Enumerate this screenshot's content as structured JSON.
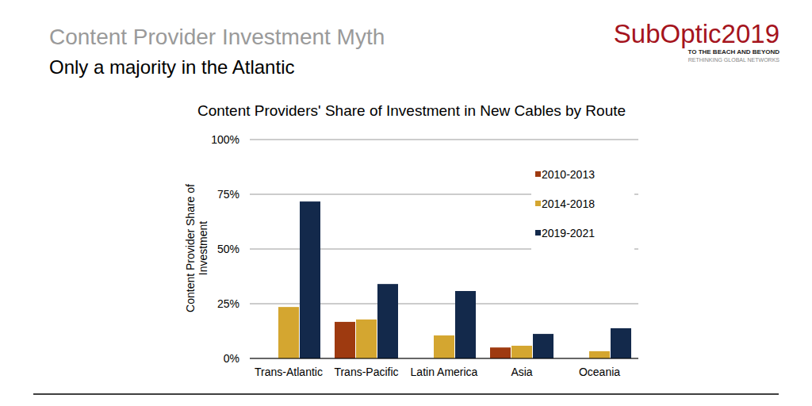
{
  "slide": {
    "heading": "Content Provider Investment Myth",
    "subheading": "Only a majority in the Atlantic",
    "logo": {
      "name": "SubOptic2019",
      "tagline": "TO THE BEACH AND BEYOND",
      "motto": "RETHINKING GLOBAL NETWORKS"
    }
  },
  "chart_data": {
    "type": "bar",
    "title": "Content Providers' Share of Investment in New Cables by Route",
    "y_label": "Content Provider Share of Investment",
    "categories": [
      "Trans-Atlantic",
      "Trans-Pacific",
      "Latin America",
      "Asia",
      "Oceania"
    ],
    "series": [
      {
        "name": "2010-2013",
        "color": "#9e3a10",
        "values": [
          null,
          16.7,
          null,
          5,
          null
        ]
      },
      {
        "name": "2014-2018",
        "color": "#d4a630",
        "values": [
          23.5,
          17.8,
          10.5,
          5.8,
          3.3
        ]
      },
      {
        "name": "2019-2021",
        "color": "#13294b",
        "values": [
          71.7,
          34,
          30.8,
          11.2,
          13.8
        ]
      }
    ],
    "ylim": [
      0,
      100
    ],
    "yticks": [
      {
        "value": 0,
        "label": "0%"
      },
      {
        "value": 25,
        "label": "25%"
      },
      {
        "value": 50,
        "label": "50%"
      },
      {
        "value": 75,
        "label": "75%"
      },
      {
        "value": 100,
        "label": "100%"
      }
    ],
    "grid": true,
    "legend": "top-right"
  }
}
